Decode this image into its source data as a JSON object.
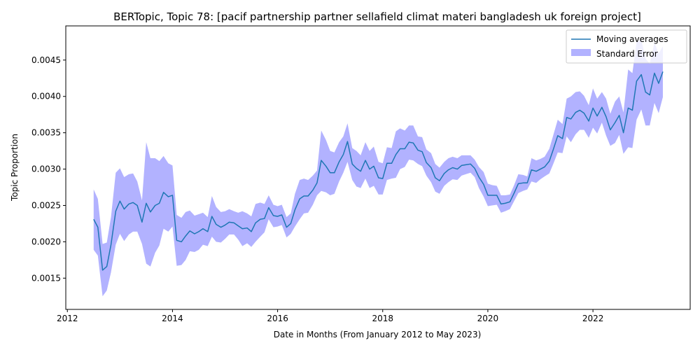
{
  "chart_data": {
    "type": "area",
    "title": "BERTopic, Topic 78: [pacif partnership partner sellafield climat materi bangladesh uk foreign project]",
    "xlabel": "Date in Months (From January 2012 to May 2023)",
    "ylabel": "Topic Proportion",
    "xlim": [
      2011.97,
      2023.85
    ],
    "ylim": [
      0.00107,
      0.00497
    ],
    "x_ticks": [
      2012,
      2014,
      2016,
      2018,
      2020,
      2022
    ],
    "x_tick_labels": [
      "2012",
      "2014",
      "2016",
      "2018",
      "2020",
      "2022"
    ],
    "y_ticks": [
      0.0015,
      0.002,
      0.0025,
      0.003,
      0.0035,
      0.004,
      0.0045
    ],
    "y_tick_labels": [
      "0.0015",
      "0.0020",
      "0.0025",
      "0.0030",
      "0.0035",
      "0.0040",
      "0.0045"
    ],
    "grid": false,
    "legend_position": "top-right",
    "colors": {
      "line": "#1f77b4",
      "band": "#0000ff",
      "band_opacity": 0.3
    },
    "x": [
      2012.5,
      2012.58,
      2012.67,
      2012.75,
      2012.83,
      2012.92,
      2013.0,
      2013.08,
      2013.17,
      2013.25,
      2013.33,
      2013.42,
      2013.5,
      2013.58,
      2013.67,
      2013.75,
      2013.83,
      2013.92,
      2014.0,
      2014.08,
      2014.17,
      2014.25,
      2014.33,
      2014.42,
      2014.5,
      2014.58,
      2014.67,
      2014.75,
      2014.83,
      2014.92,
      2015.0,
      2015.08,
      2015.17,
      2015.25,
      2015.33,
      2015.42,
      2015.5,
      2015.58,
      2015.67,
      2015.75,
      2015.83,
      2015.92,
      2016.0,
      2016.08,
      2016.17,
      2016.25,
      2016.33,
      2016.42,
      2016.5,
      2016.58,
      2016.67,
      2016.75,
      2016.83,
      2016.92,
      2017.0,
      2017.08,
      2017.17,
      2017.25,
      2017.33,
      2017.42,
      2017.5,
      2017.58,
      2017.67,
      2017.75,
      2017.83,
      2017.92,
      2018.0,
      2018.08,
      2018.17,
      2018.25,
      2018.33,
      2018.42,
      2018.5,
      2018.58,
      2018.67,
      2018.75,
      2018.83,
      2018.92,
      2019.0,
      2019.08,
      2019.17,
      2019.25,
      2019.33,
      2019.42,
      2019.5,
      2019.58,
      2019.67,
      2019.75,
      2019.83,
      2019.92,
      2020.0,
      2020.08,
      2020.17,
      2020.25,
      2020.33,
      2020.42,
      2020.5,
      2020.58,
      2020.67,
      2020.75,
      2020.83,
      2020.92,
      2021.0,
      2021.08,
      2021.17,
      2021.25,
      2021.33,
      2021.42,
      2021.5,
      2021.58,
      2021.67,
      2021.75,
      2021.83,
      2021.92,
      2022.0,
      2022.08,
      2022.17,
      2022.25,
      2022.33,
      2022.42,
      2022.5,
      2022.58,
      2022.67,
      2022.75,
      2022.83,
      2022.92,
      2023.0,
      2023.08,
      2023.17,
      2023.25,
      2023.33
    ],
    "series": [
      {
        "name": "Moving averages",
        "values": [
          0.00231,
          0.0022,
          0.00161,
          0.00166,
          0.00196,
          0.00242,
          0.00256,
          0.00245,
          0.00252,
          0.00254,
          0.0025,
          0.00227,
          0.00253,
          0.00241,
          0.0025,
          0.00253,
          0.00268,
          0.00262,
          0.00264,
          0.00202,
          0.002,
          0.00208,
          0.00215,
          0.00211,
          0.00214,
          0.00218,
          0.00214,
          0.00235,
          0.00224,
          0.0022,
          0.00223,
          0.00227,
          0.00226,
          0.00222,
          0.00218,
          0.00219,
          0.00214,
          0.00226,
          0.00231,
          0.00232,
          0.00247,
          0.00236,
          0.00235,
          0.00237,
          0.0022,
          0.00225,
          0.00244,
          0.00259,
          0.00263,
          0.00263,
          0.00271,
          0.00281,
          0.00312,
          0.00304,
          0.00295,
          0.00295,
          0.0031,
          0.0032,
          0.00338,
          0.00307,
          0.00301,
          0.00297,
          0.00312,
          0.003,
          0.00304,
          0.00288,
          0.00287,
          0.00308,
          0.00308,
          0.0032,
          0.00328,
          0.00328,
          0.00337,
          0.00336,
          0.00326,
          0.00324,
          0.00309,
          0.00302,
          0.00288,
          0.00284,
          0.00294,
          0.00299,
          0.00302,
          0.003,
          0.00305,
          0.00306,
          0.00307,
          0.00301,
          0.00289,
          0.00279,
          0.00264,
          0.00264,
          0.00264,
          0.00252,
          0.00253,
          0.00255,
          0.00267,
          0.0028,
          0.00281,
          0.00281,
          0.00299,
          0.00297,
          0.003,
          0.00303,
          0.00311,
          0.00328,
          0.00346,
          0.00342,
          0.00371,
          0.00369,
          0.00378,
          0.00381,
          0.00377,
          0.00366,
          0.00384,
          0.00373,
          0.00385,
          0.00372,
          0.00354,
          0.00364,
          0.00374,
          0.0035,
          0.00384,
          0.00381,
          0.00421,
          0.0043,
          0.00406,
          0.00402,
          0.00432,
          0.00418,
          0.00434
        ]
      },
      {
        "name": "Standard Error",
        "lower": [
          0.00189,
          0.00181,
          0.00125,
          0.00133,
          0.00158,
          0.00196,
          0.00211,
          0.00201,
          0.0021,
          0.00214,
          0.00214,
          0.00197,
          0.0017,
          0.00166,
          0.00185,
          0.00195,
          0.00218,
          0.00214,
          0.00221,
          0.00167,
          0.00168,
          0.00175,
          0.00187,
          0.00186,
          0.00189,
          0.00196,
          0.00194,
          0.00207,
          0.002,
          0.00199,
          0.00204,
          0.0021,
          0.0021,
          0.00203,
          0.00194,
          0.00198,
          0.00193,
          0.002,
          0.00207,
          0.00213,
          0.00231,
          0.0022,
          0.00221,
          0.00223,
          0.00206,
          0.00211,
          0.00221,
          0.00231,
          0.00239,
          0.0024,
          0.00251,
          0.00264,
          0.0027,
          0.00268,
          0.00264,
          0.00266,
          0.00283,
          0.00295,
          0.0031,
          0.00285,
          0.00276,
          0.00274,
          0.00287,
          0.00274,
          0.00277,
          0.00265,
          0.00265,
          0.00285,
          0.00287,
          0.00288,
          0.003,
          0.00303,
          0.00313,
          0.00312,
          0.00307,
          0.00304,
          0.00291,
          0.00282,
          0.00269,
          0.00266,
          0.00277,
          0.00282,
          0.00286,
          0.00285,
          0.00291,
          0.00293,
          0.00295,
          0.00289,
          0.00274,
          0.00262,
          0.00249,
          0.0025,
          0.00251,
          0.0024,
          0.00242,
          0.00245,
          0.00256,
          0.00267,
          0.0027,
          0.00272,
          0.00283,
          0.00281,
          0.00286,
          0.0029,
          0.00294,
          0.00308,
          0.00323,
          0.00322,
          0.00345,
          0.00337,
          0.00348,
          0.00354,
          0.00354,
          0.00343,
          0.00357,
          0.00349,
          0.00364,
          0.00346,
          0.00332,
          0.00336,
          0.00347,
          0.00321,
          0.0033,
          0.00329,
          0.00368,
          0.00382,
          0.0036,
          0.0036,
          0.00391,
          0.00377,
          0.00399
        ],
        "upper": [
          0.00272,
          0.00259,
          0.00197,
          0.00199,
          0.00234,
          0.00295,
          0.00301,
          0.00289,
          0.00293,
          0.00294,
          0.00283,
          0.00257,
          0.00337,
          0.00315,
          0.00315,
          0.00311,
          0.00318,
          0.00308,
          0.00305,
          0.00237,
          0.00233,
          0.00241,
          0.00243,
          0.00236,
          0.00238,
          0.0024,
          0.00234,
          0.00263,
          0.00248,
          0.00241,
          0.00242,
          0.00245,
          0.00242,
          0.0024,
          0.00242,
          0.00239,
          0.00235,
          0.00252,
          0.00254,
          0.00252,
          0.00264,
          0.00251,
          0.00249,
          0.00251,
          0.00234,
          0.00239,
          0.00266,
          0.00285,
          0.00287,
          0.00285,
          0.00291,
          0.00298,
          0.00353,
          0.0034,
          0.00325,
          0.00323,
          0.00337,
          0.00345,
          0.00363,
          0.00329,
          0.00325,
          0.00319,
          0.00337,
          0.00325,
          0.00331,
          0.0031,
          0.00308,
          0.0033,
          0.00329,
          0.00352,
          0.00356,
          0.00353,
          0.0036,
          0.0036,
          0.00345,
          0.00344,
          0.00327,
          0.00322,
          0.00307,
          0.00302,
          0.0031,
          0.00315,
          0.00317,
          0.00315,
          0.00319,
          0.00319,
          0.00319,
          0.00313,
          0.00303,
          0.00296,
          0.0028,
          0.00278,
          0.00277,
          0.00264,
          0.00264,
          0.00265,
          0.00278,
          0.00293,
          0.00292,
          0.0029,
          0.00315,
          0.00312,
          0.00314,
          0.00317,
          0.00328,
          0.00348,
          0.00368,
          0.00362,
          0.00397,
          0.004,
          0.00406,
          0.00407,
          0.00401,
          0.00388,
          0.00411,
          0.00397,
          0.00406,
          0.00397,
          0.00376,
          0.00393,
          0.004,
          0.00378,
          0.00437,
          0.00432,
          0.00475,
          0.00478,
          0.00452,
          0.00445,
          0.00474,
          0.00459,
          0.00469
        ]
      }
    ]
  }
}
